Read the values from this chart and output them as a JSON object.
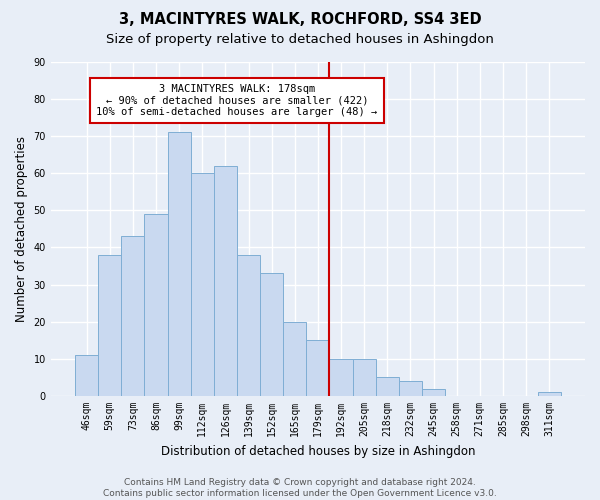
{
  "title": "3, MACINTYRES WALK, ROCHFORD, SS4 3ED",
  "subtitle": "Size of property relative to detached houses in Ashingdon",
  "xlabel": "Distribution of detached houses by size in Ashingdon",
  "ylabel": "Number of detached properties",
  "categories": [
    "46sqm",
    "59sqm",
    "73sqm",
    "86sqm",
    "99sqm",
    "112sqm",
    "126sqm",
    "139sqm",
    "152sqm",
    "165sqm",
    "179sqm",
    "192sqm",
    "205sqm",
    "218sqm",
    "232sqm",
    "245sqm",
    "258sqm",
    "271sqm",
    "285sqm",
    "298sqm",
    "311sqm"
  ],
  "values": [
    11,
    38,
    43,
    49,
    71,
    60,
    62,
    38,
    33,
    20,
    15,
    10,
    10,
    5,
    4,
    2,
    0,
    0,
    0,
    0,
    1
  ],
  "bar_color": "#c9d9f0",
  "bar_edge_color": "#7faed4",
  "vline_x_index": 10,
  "vline_color": "#cc0000",
  "annotation_text": "3 MACINTYRES WALK: 178sqm\n← 90% of detached houses are smaller (422)\n10% of semi-detached houses are larger (48) →",
  "annotation_box_color": "#ffffff",
  "annotation_box_edge": "#cc0000",
  "ylim": [
    0,
    90
  ],
  "yticks": [
    0,
    10,
    20,
    30,
    40,
    50,
    60,
    70,
    80,
    90
  ],
  "footnote": "Contains HM Land Registry data © Crown copyright and database right 2024.\nContains public sector information licensed under the Open Government Licence v3.0.",
  "bg_color": "#e8eef7",
  "plot_bg_color": "#e8eef7",
  "grid_color": "#ffffff",
  "title_fontsize": 10.5,
  "subtitle_fontsize": 9.5,
  "axis_label_fontsize": 8.5,
  "tick_fontsize": 7,
  "footnote_fontsize": 6.5
}
